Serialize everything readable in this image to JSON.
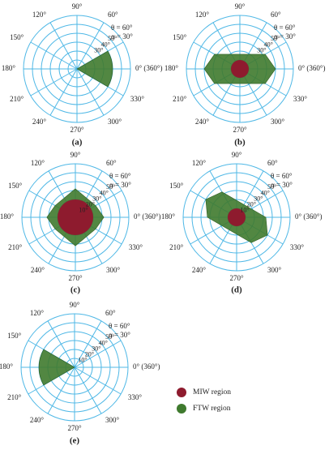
{
  "figure": {
    "colors": {
      "grid": "#4fb8e6",
      "miw": "#8e1b2e",
      "ftw": "#3f7a2e"
    },
    "polar": {
      "angle_labels": [
        {
          "deg": 90,
          "text": "90°"
        },
        {
          "deg": 60,
          "text": "60°"
        },
        {
          "deg": 120,
          "text": "120°"
        },
        {
          "deg": 150,
          "text": "150°"
        },
        {
          "deg": 180,
          "text": "180°"
        },
        {
          "deg": 210,
          "text": "210°"
        },
        {
          "deg": 240,
          "text": "240°"
        },
        {
          "deg": 270,
          "text": "270°"
        },
        {
          "deg": 300,
          "text": "300°"
        },
        {
          "deg": 330,
          "text": "330°"
        },
        {
          "deg": 0,
          "text": "0°  (360°)"
        }
      ],
      "radial_labels": [
        "10°",
        "20°",
        "30°",
        "40°",
        "50°"
      ],
      "theta_label": "θ = 60°",
      "alpha_label": "α = 30°",
      "rings": 6
    },
    "panels": [
      {
        "id": "a",
        "label": "(a)",
        "show_radial": false,
        "ftw": {
          "start_deg": -30,
          "end_deg": 30,
          "radius_rings": 4,
          "center": 0
        },
        "miw_rings": 0
      },
      {
        "id": "b",
        "label": "(b)",
        "show_radial": false,
        "ftw": {
          "diamond_deg": 0,
          "radius_rings": 4
        },
        "miw_rings": 1
      },
      {
        "id": "c",
        "label": "(c)",
        "show_radial": true,
        "ftw": {
          "diamond_deg": 0,
          "radius_rings": 3.2,
          "double": true
        },
        "miw_rings": 2
      },
      {
        "id": "d",
        "label": "(d)",
        "show_radial": true,
        "ftw": {
          "diamond_deg": 150,
          "radius_rings": 4
        },
        "miw_rings": 1
      },
      {
        "id": "e",
        "label": "(e)",
        "show_radial": true,
        "ftw": {
          "start_deg": 150,
          "end_deg": 210,
          "radius_rings": 4,
          "center": 0
        },
        "miw_rings": 0
      }
    ],
    "legend": [
      {
        "key": "miw",
        "text": "MIW region"
      },
      {
        "key": "ftw",
        "text": "FTW region"
      }
    ]
  }
}
